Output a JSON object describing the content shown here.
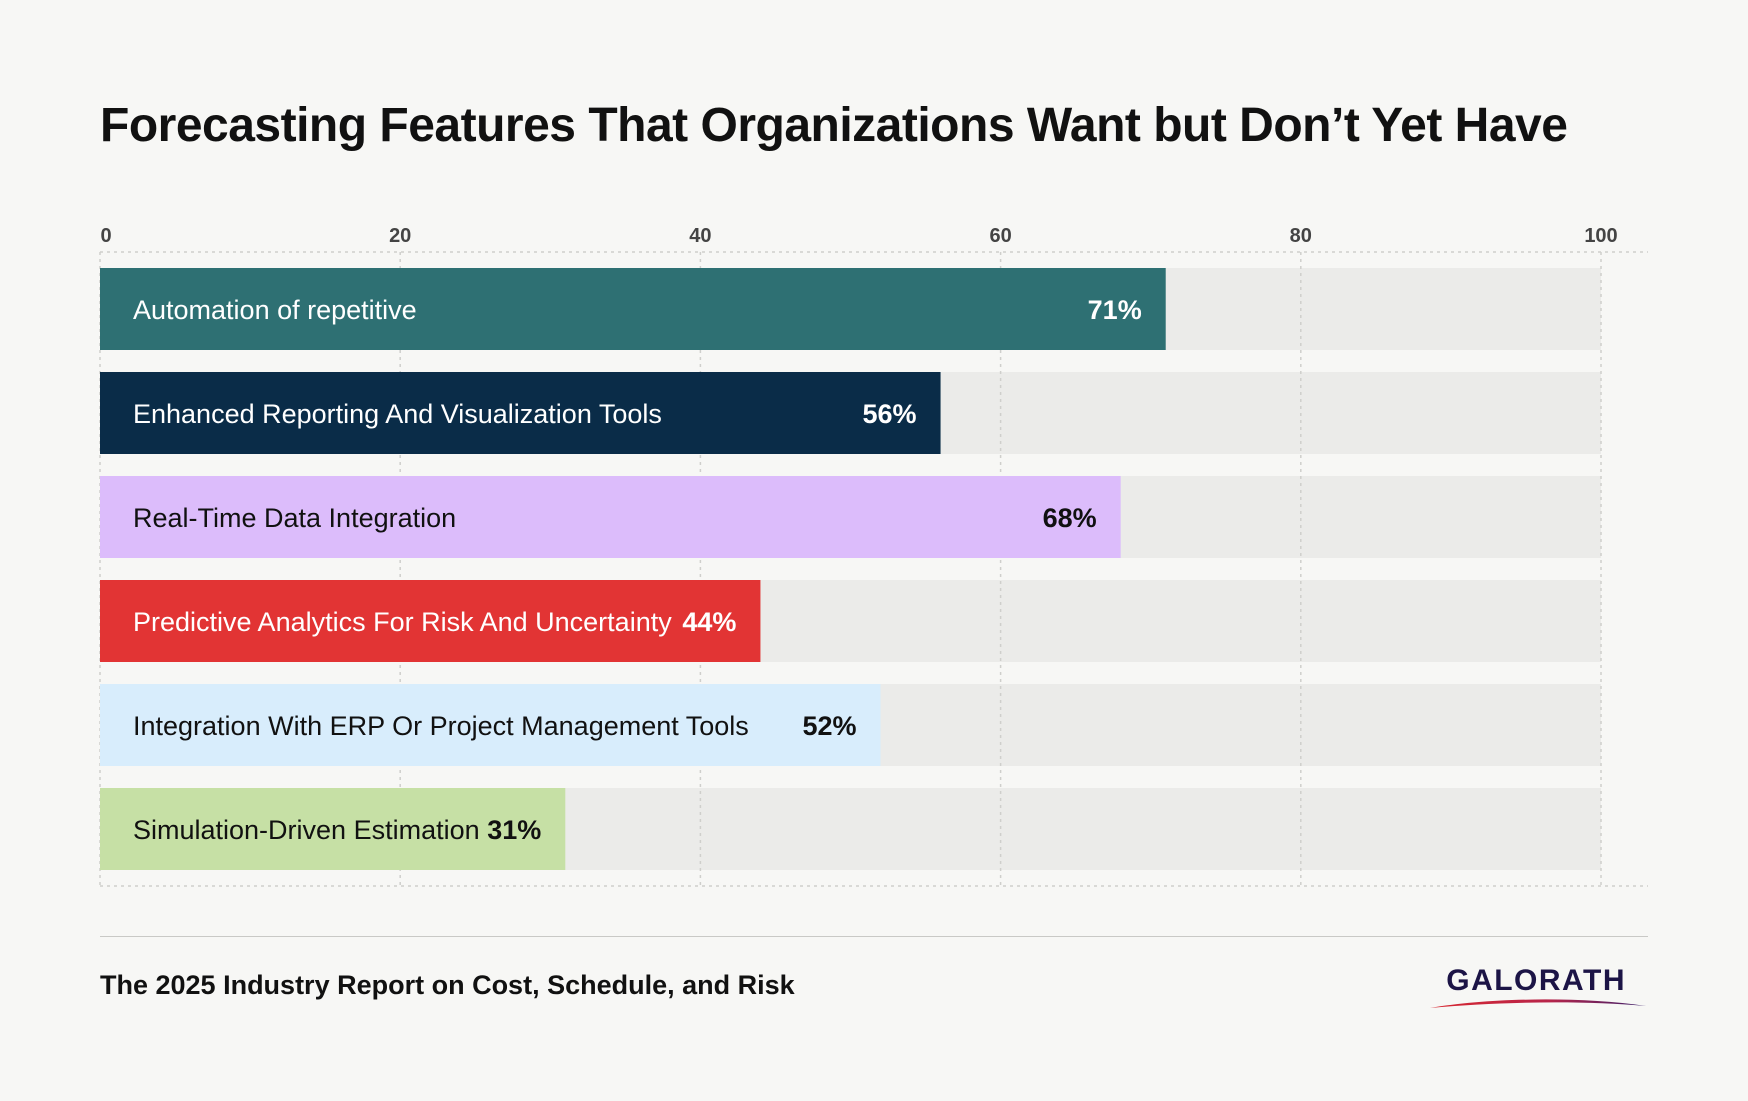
{
  "chart_data": {
    "type": "bar",
    "orientation": "horizontal",
    "title": "Forecasting Features That Organizations Want but Don’t Yet Have",
    "xlim": [
      0,
      100
    ],
    "x_ticks": [
      0,
      20,
      40,
      60,
      80,
      100
    ],
    "grid": true,
    "categories": [
      "Automation of repetitive",
      "Enhanced Reporting And Visualization Tools",
      "Real-Time Data Integration",
      "Predictive Analytics For Risk And Uncertainty",
      "Integration With ERP Or Project Management Tools",
      "Simulation-Driven Estimation"
    ],
    "values": [
      71,
      56,
      68,
      44,
      52,
      31
    ],
    "value_labels": [
      "71%",
      "56%",
      "68%",
      "44%",
      "52%",
      "31%"
    ],
    "colors": [
      "#2e7073",
      "#0a2c48",
      "#dcbcfb",
      "#e23434",
      "#d8edfc",
      "#c6e0a5"
    ],
    "label_colors": [
      "#ffffff",
      "#ffffff",
      "#111111",
      "#ffffff",
      "#111111",
      "#111111"
    ],
    "track_color": "#ebebe9"
  },
  "footer": {
    "source": "The 2025 Industry Report on Cost, Schedule, and Risk",
    "brand": "GALORATH"
  }
}
